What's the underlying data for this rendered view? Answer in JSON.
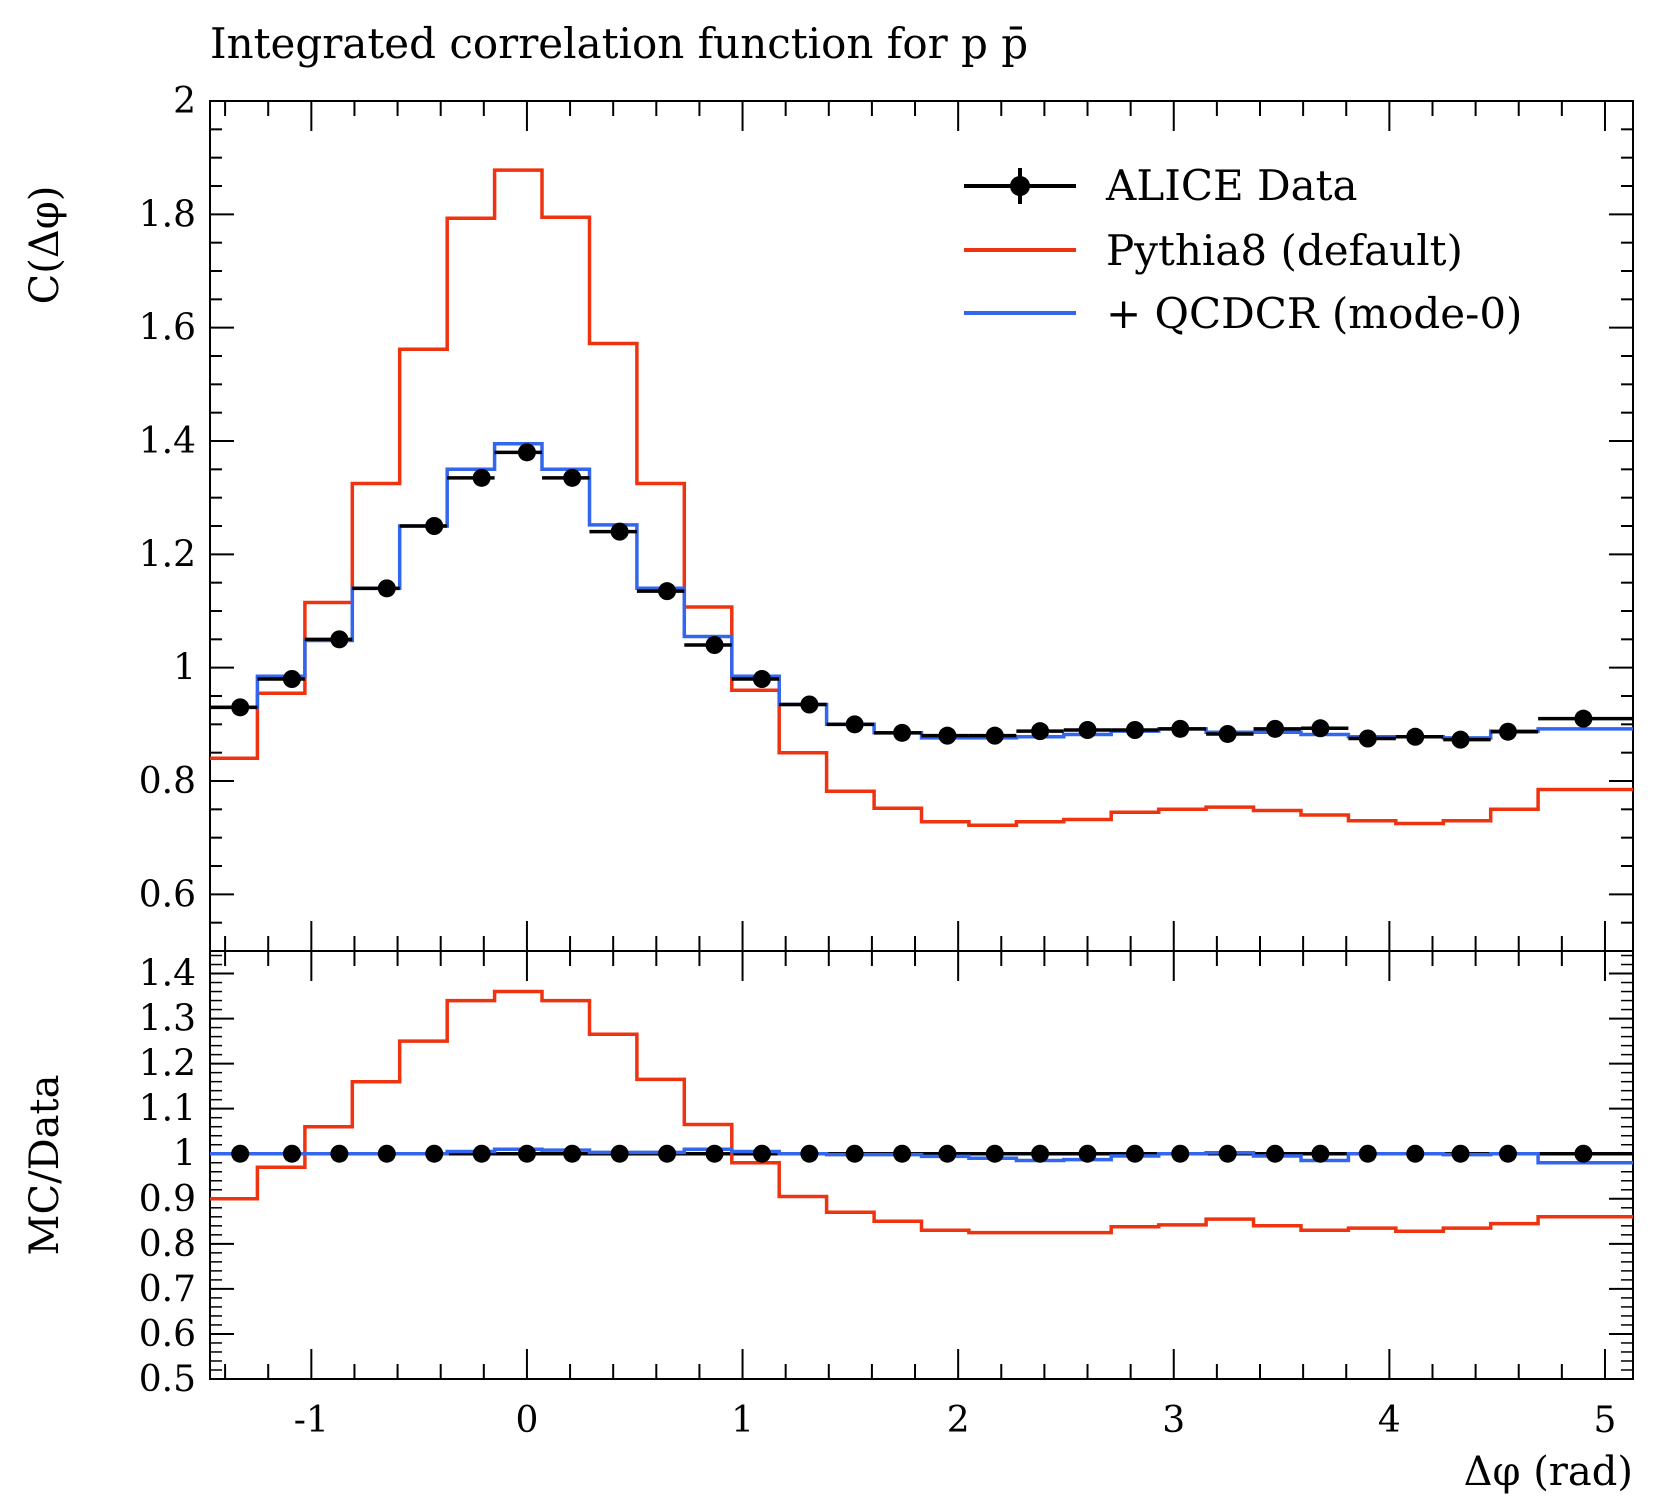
{
  "title": "Integrated correlation function for p p̄",
  "colors": {
    "data": "#000000",
    "pythia": "#ee3311",
    "qcdcr": "#3366ee"
  },
  "chart_data": [
    {
      "type": "line",
      "panel": "main",
      "ylabel": "C(Δφ)",
      "xlim": [
        -1.47,
        5.13
      ],
      "ylim": [
        0.5,
        2.0
      ],
      "y_ticks": [
        0.6,
        0.8,
        1,
        1.2,
        1.4,
        1.6,
        1.8,
        2
      ],
      "y_tick_labels": [
        "0.6",
        "0.8",
        "1",
        "1.2",
        "1.4",
        "1.6",
        "1.8",
        "2"
      ],
      "bin_edges": [
        -1.47,
        -1.25,
        -1.03,
        -0.81,
        -0.59,
        -0.37,
        -0.15,
        0.07,
        0.29,
        0.51,
        0.73,
        0.95,
        1.17,
        1.39,
        1.61,
        1.83,
        2.05,
        2.27,
        2.49,
        2.71,
        2.93,
        3.15,
        3.37,
        3.59,
        3.81,
        4.03,
        4.25,
        4.47,
        4.69,
        4.91,
        5.13
      ],
      "data_bins": [
        {
          "x": -1.33,
          "y": 0.93,
          "xlo": -1.47,
          "xhi": -1.25
        },
        {
          "x": -1.09,
          "y": 0.98,
          "xlo": -1.25,
          "xhi": -1.03
        },
        {
          "x": -0.87,
          "y": 1.05,
          "xlo": -1.03,
          "xhi": -0.81
        },
        {
          "x": -0.65,
          "y": 1.14,
          "xlo": -0.81,
          "xhi": -0.59
        },
        {
          "x": -0.43,
          "y": 1.25,
          "xlo": -0.59,
          "xhi": -0.37
        },
        {
          "x": -0.21,
          "y": 1.335,
          "xlo": -0.37,
          "xhi": -0.15
        },
        {
          "x": 0.0,
          "y": 1.38,
          "xlo": -0.15,
          "xhi": 0.07
        },
        {
          "x": 0.21,
          "y": 1.335,
          "xlo": 0.07,
          "xhi": 0.29
        },
        {
          "x": 0.43,
          "y": 1.24,
          "xlo": 0.29,
          "xhi": 0.51
        },
        {
          "x": 0.65,
          "y": 1.135,
          "xlo": 0.51,
          "xhi": 0.73
        },
        {
          "x": 0.87,
          "y": 1.04,
          "xlo": 0.73,
          "xhi": 0.95
        },
        {
          "x": 1.09,
          "y": 0.98,
          "xlo": 0.95,
          "xhi": 1.17
        },
        {
          "x": 1.31,
          "y": 0.935,
          "xlo": 1.17,
          "xhi": 1.39
        },
        {
          "x": 1.52,
          "y": 0.9,
          "xlo": 1.39,
          "xhi": 1.61
        },
        {
          "x": 1.74,
          "y": 0.885,
          "xlo": 1.61,
          "xhi": 1.83
        },
        {
          "x": 1.95,
          "y": 0.88,
          "xlo": 1.83,
          "xhi": 2.05
        },
        {
          "x": 2.17,
          "y": 0.88,
          "xlo": 2.05,
          "xhi": 2.27
        },
        {
          "x": 2.38,
          "y": 0.888,
          "xlo": 2.27,
          "xhi": 2.49
        },
        {
          "x": 2.6,
          "y": 0.89,
          "xlo": 2.49,
          "xhi": 2.71
        },
        {
          "x": 2.82,
          "y": 0.89,
          "xlo": 2.71,
          "xhi": 2.93
        },
        {
          "x": 3.03,
          "y": 0.892,
          "xlo": 2.93,
          "xhi": 3.15
        },
        {
          "x": 3.25,
          "y": 0.883,
          "xlo": 3.15,
          "xhi": 3.37
        },
        {
          "x": 3.47,
          "y": 0.892,
          "xlo": 3.37,
          "xhi": 3.59
        },
        {
          "x": 3.68,
          "y": 0.893,
          "xlo": 3.59,
          "xhi": 3.81
        },
        {
          "x": 3.9,
          "y": 0.875,
          "xlo": 3.81,
          "xhi": 4.03
        },
        {
          "x": 4.12,
          "y": 0.878,
          "xlo": 4.03,
          "xhi": 4.25
        },
        {
          "x": 4.33,
          "y": 0.873,
          "xlo": 4.25,
          "xhi": 4.47
        },
        {
          "x": 4.55,
          "y": 0.887,
          "xlo": 4.47,
          "xhi": 4.69
        },
        {
          "x": 4.9,
          "y": 0.91,
          "xlo": 4.69,
          "xhi": 5.13
        }
      ],
      "series": [
        {
          "name": "Pythia8 (default)",
          "values": [
            0.84,
            0.955,
            1.115,
            1.325,
            1.562,
            1.793,
            1.878,
            1.795,
            1.572,
            1.325,
            1.107,
            0.96,
            0.85,
            0.782,
            0.752,
            0.728,
            0.722,
            0.728,
            0.732,
            0.745,
            0.75,
            0.754,
            0.748,
            0.74,
            0.73,
            0.725,
            0.73,
            0.75,
            0.785,
            0.785
          ]
        },
        {
          "name": "+ QCDCR (mode-0)",
          "values": [
            0.93,
            0.985,
            1.048,
            1.14,
            1.25,
            1.35,
            1.395,
            1.35,
            1.252,
            1.14,
            1.055,
            0.985,
            0.935,
            0.9,
            0.885,
            0.876,
            0.876,
            0.878,
            0.882,
            0.888,
            0.892,
            0.886,
            0.886,
            0.882,
            0.878,
            0.878,
            0.876,
            0.888,
            0.892,
            0.892
          ]
        }
      ],
      "legend": {
        "placement": "top-right",
        "entries": [
          "ALICE Data",
          "Pythia8 (default)",
          "+ QCDCR (mode-0)"
        ]
      }
    },
    {
      "type": "line",
      "panel": "ratio",
      "ylabel": "MC/Data",
      "xlabel": "Δφ (rad)",
      "xlim": [
        -1.47,
        5.13
      ],
      "ylim": [
        0.5,
        1.45
      ],
      "y_ticks": [
        0.5,
        0.6,
        0.7,
        0.8,
        0.9,
        1,
        1.1,
        1.2,
        1.3,
        1.4
      ],
      "y_tick_labels": [
        "0.5",
        "0.6",
        "0.7",
        "0.8",
        "0.9",
        "1",
        "1.1",
        "1.2",
        "1.3",
        "1.4"
      ],
      "x_ticks": [
        -1,
        0,
        1,
        2,
        3,
        4,
        5
      ],
      "x_tick_labels": [
        "-1",
        "0",
        "1",
        "2",
        "3",
        "4",
        "5"
      ],
      "data_ratio": 1.0,
      "series": [
        {
          "name": "Pythia8 (default)",
          "values": [
            0.9,
            0.97,
            1.06,
            1.16,
            1.25,
            1.34,
            1.36,
            1.34,
            1.265,
            1.165,
            1.065,
            0.98,
            0.905,
            0.87,
            0.85,
            0.83,
            0.825,
            0.825,
            0.825,
            0.838,
            0.842,
            0.855,
            0.84,
            0.83,
            0.835,
            0.828,
            0.835,
            0.845,
            0.86,
            0.86
          ]
        },
        {
          "name": "+ QCDCR (mode-0)",
          "values": [
            1.0,
            1.0,
            1.0,
            1.0,
            1.0,
            1.005,
            1.01,
            1.008,
            1.003,
            1.003,
            1.01,
            1.005,
            1.0,
            0.998,
            0.998,
            0.994,
            0.99,
            0.985,
            0.987,
            0.995,
            1.0,
            1.002,
            0.995,
            0.985,
            1.0,
            1.0,
            0.998,
            1.0,
            0.98,
            0.98
          ]
        }
      ]
    }
  ]
}
